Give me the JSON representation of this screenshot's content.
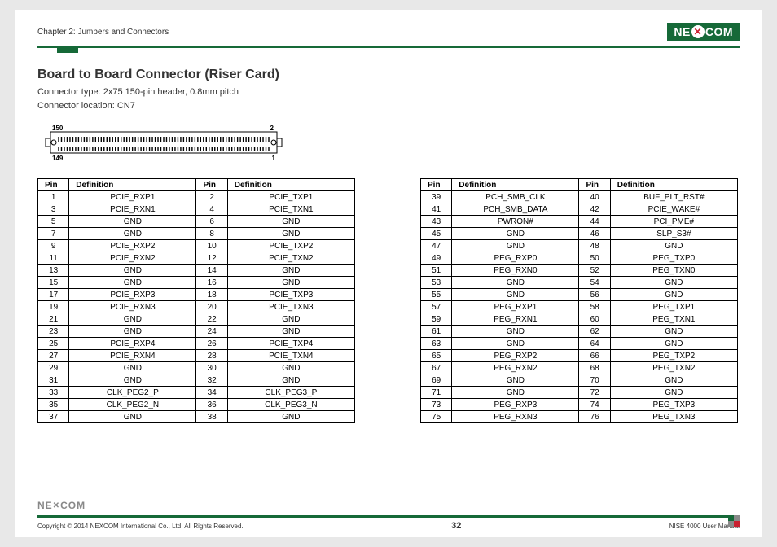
{
  "header": {
    "chapter": "Chapter 2: Jumpers and Connectors",
    "brand": "NEXCOM"
  },
  "section": {
    "title": "Board to Board Connector (Riser Card)",
    "connector_type": "Connector type: 2x75 150-pin header, 0.8mm pitch",
    "connector_location": "Connector location: CN7"
  },
  "connector_diagram": {
    "labels": {
      "tl": "150",
      "tr": "2",
      "bl": "149",
      "br": "1"
    },
    "pins_per_row": 75
  },
  "table_headers": {
    "pin": "Pin",
    "def": "Definition"
  },
  "table_left": [
    [
      "1",
      "PCIE_RXP1",
      "2",
      "PCIE_TXP1"
    ],
    [
      "3",
      "PCIE_RXN1",
      "4",
      "PCIE_TXN1"
    ],
    [
      "5",
      "GND",
      "6",
      "GND"
    ],
    [
      "7",
      "GND",
      "8",
      "GND"
    ],
    [
      "9",
      "PCIE_RXP2",
      "10",
      "PCIE_TXP2"
    ],
    [
      "11",
      "PCIE_RXN2",
      "12",
      "PCIE_TXN2"
    ],
    [
      "13",
      "GND",
      "14",
      "GND"
    ],
    [
      "15",
      "GND",
      "16",
      "GND"
    ],
    [
      "17",
      "PCIE_RXP3",
      "18",
      "PCIE_TXP3"
    ],
    [
      "19",
      "PCIE_RXN3",
      "20",
      "PCIE_TXN3"
    ],
    [
      "21",
      "GND",
      "22",
      "GND"
    ],
    [
      "23",
      "GND",
      "24",
      "GND"
    ],
    [
      "25",
      "PCIE_RXP4",
      "26",
      "PCIE_TXP4"
    ],
    [
      "27",
      "PCIE_RXN4",
      "28",
      "PCIE_TXN4"
    ],
    [
      "29",
      "GND",
      "30",
      "GND"
    ],
    [
      "31",
      "GND",
      "32",
      "GND"
    ],
    [
      "33",
      "CLK_PEG2_P",
      "34",
      "CLK_PEG3_P"
    ],
    [
      "35",
      "CLK_PEG2_N",
      "36",
      "CLK_PEG3_N"
    ],
    [
      "37",
      "GND",
      "38",
      "GND"
    ]
  ],
  "table_right": [
    [
      "39",
      "PCH_SMB_CLK",
      "40",
      "BUF_PLT_RST#"
    ],
    [
      "41",
      "PCH_SMB_DATA",
      "42",
      "PCIE_WAKE#"
    ],
    [
      "43",
      "PWRON#",
      "44",
      "PCI_PME#"
    ],
    [
      "45",
      "GND",
      "46",
      "SLP_S3#"
    ],
    [
      "47",
      "GND",
      "48",
      "GND"
    ],
    [
      "49",
      "PEG_RXP0",
      "50",
      "PEG_TXP0"
    ],
    [
      "51",
      "PEG_RXN0",
      "52",
      "PEG_TXN0"
    ],
    [
      "53",
      "GND",
      "54",
      "GND"
    ],
    [
      "55",
      "GND",
      "56",
      "GND"
    ],
    [
      "57",
      "PEG_RXP1",
      "58",
      "PEG_TXP1"
    ],
    [
      "59",
      "PEG_RXN1",
      "60",
      "PEG_TXN1"
    ],
    [
      "61",
      "GND",
      "62",
      "GND"
    ],
    [
      "63",
      "GND",
      "64",
      "GND"
    ],
    [
      "65",
      "PEG_RXP2",
      "66",
      "PEG_TXP2"
    ],
    [
      "67",
      "PEG_RXN2",
      "68",
      "PEG_TXN2"
    ],
    [
      "69",
      "GND",
      "70",
      "GND"
    ],
    [
      "71",
      "GND",
      "72",
      "GND"
    ],
    [
      "73",
      "PEG_RXP3",
      "74",
      "PEG_TXP3"
    ],
    [
      "75",
      "PEG_RXN3",
      "76",
      "PEG_TXN3"
    ]
  ],
  "footer": {
    "copyright": "Copyright © 2014 NEXCOM International Co., Ltd. All Rights Reserved.",
    "page_number": "32",
    "manual": "NISE 4000 User Manual",
    "brand_small": "NEXCOM"
  },
  "colors": {
    "accent_green": "#166938",
    "logo_red": "#c91f2f",
    "text": "#333333",
    "border": "#000000"
  }
}
